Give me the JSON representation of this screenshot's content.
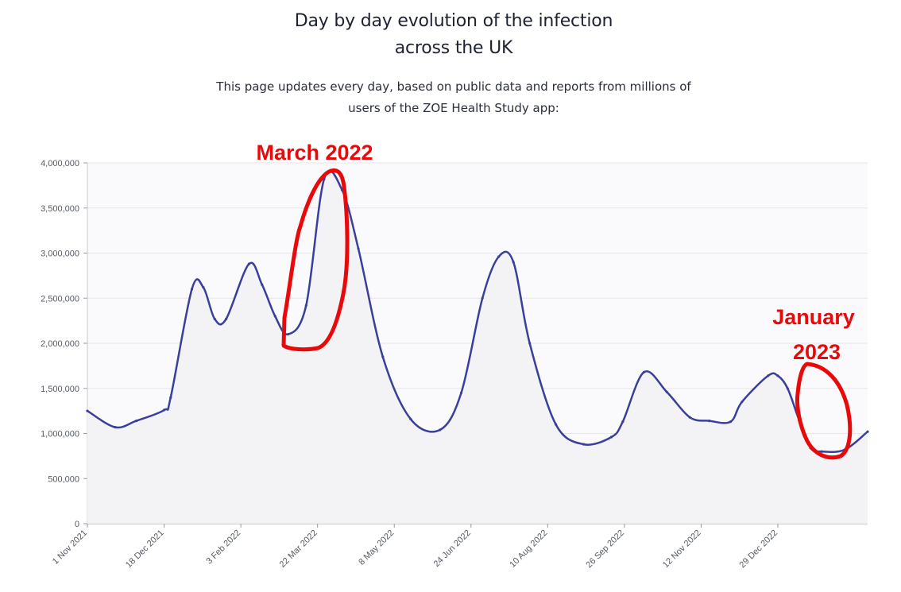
{
  "header": {
    "title_line1": "Day by day evolution of the infection",
    "title_line2": "across the UK",
    "subtitle_line1": "This page updates every day, based on public data and reports from millions of",
    "subtitle_line2": "users of the ZOE Health Study app:"
  },
  "annotations": {
    "march": "March 2022",
    "january_line1": "January",
    "january_line2": "2023",
    "color": "#e80a0a"
  },
  "chart_data": {
    "type": "area",
    "title": "",
    "xlabel": "",
    "ylabel": "",
    "series_color": "#3a3f9a",
    "fill_color": "#f3f3f5",
    "ylim": [
      0,
      4000000
    ],
    "yticks": [
      0,
      500000,
      1000000,
      1500000,
      2000000,
      2500000,
      3000000,
      3500000,
      4000000
    ],
    "ytick_labels": [
      "0",
      "500,000",
      "1,000,000",
      "1,500,000",
      "2,000,000",
      "2,500,000",
      "3,000,000",
      "3,500,000",
      "4,000,000"
    ],
    "x_start": "2021-11-01",
    "x_end": "2023-02-22",
    "xtick_labels": [
      "1 Nov 2021",
      "18 Dec 2021",
      "3 Feb 2022",
      "22 Mar 2022",
      "8 May 2022",
      "24 Jun 2022",
      "10 Aug 2022",
      "26 Sep 2022",
      "12 Nov 2022",
      "29 Dec 2022"
    ],
    "xtick_dates": [
      "2021-11-01",
      "2021-12-18",
      "2022-02-03",
      "2022-03-22",
      "2022-05-08",
      "2022-06-24",
      "2022-08-10",
      "2022-09-26",
      "2022-11-12",
      "2022-12-29"
    ],
    "series": [
      {
        "x": [
          "2021-11-01",
          "2021-11-18",
          "2021-12-01",
          "2021-12-18",
          "2021-12-22",
          "2022-01-04",
          "2022-01-11",
          "2022-01-18",
          "2022-01-25",
          "2022-02-08",
          "2022-02-16",
          "2022-02-24",
          "2022-03-04",
          "2022-03-15",
          "2022-03-26",
          "2022-04-06",
          "2022-04-16",
          "2022-05-01",
          "2022-05-18",
          "2022-06-05",
          "2022-06-18",
          "2022-07-01",
          "2022-07-11",
          "2022-07-20",
          "2022-07-30",
          "2022-08-15",
          "2022-09-01",
          "2022-09-18",
          "2022-09-25",
          "2022-10-08",
          "2022-10-22",
          "2022-11-05",
          "2022-11-17",
          "2022-11-30",
          "2022-12-07",
          "2022-12-23",
          "2022-12-29",
          "2023-01-04",
          "2023-01-11",
          "2023-01-18",
          "2023-01-25",
          "2023-02-08",
          "2023-02-22"
        ],
        "y": [
          1250000,
          1070000,
          1140000,
          1260000,
          1400000,
          2600000,
          2620000,
          2270000,
          2270000,
          2880000,
          2650000,
          2300000,
          2100000,
          2420000,
          3820000,
          3700000,
          3050000,
          1850000,
          1160000,
          1040000,
          1450000,
          2500000,
          2960000,
          2900000,
          2000000,
          1100000,
          880000,
          960000,
          1130000,
          1680000,
          1460000,
          1180000,
          1140000,
          1130000,
          1350000,
          1640000,
          1640000,
          1500000,
          1150000,
          840000,
          800000,
          820000,
          1020000
        ]
      }
    ]
  }
}
